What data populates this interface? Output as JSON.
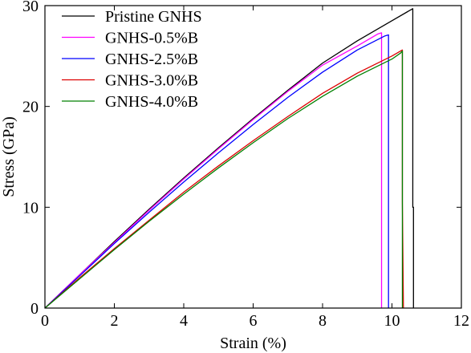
{
  "chart_data": {
    "type": "line",
    "title": "",
    "xlabel": "Strain (%)",
    "ylabel": "Stress (GPa)",
    "xlim": [
      0,
      12
    ],
    "ylim": [
      0,
      30
    ],
    "xticks": [
      0,
      2,
      4,
      6,
      8,
      10,
      12
    ],
    "yticks": [
      0,
      10,
      20,
      30
    ],
    "grid": false,
    "legend_position": "top-left",
    "series": [
      {
        "name": "Pristine GNHS",
        "color": "#000000",
        "x": [
          0,
          1,
          2,
          3,
          4,
          5,
          6,
          7,
          8,
          9,
          10,
          10.6,
          10.6,
          10.62,
          10.62
        ],
        "y": [
          0,
          3.3,
          6.6,
          9.8,
          12.9,
          15.9,
          18.8,
          21.6,
          24.3,
          26.5,
          28.5,
          29.7,
          10.0,
          10.0,
          0
        ]
      },
      {
        "name": "GNHS-0.5%B",
        "color": "#ff00ff",
        "x": [
          0,
          1,
          2,
          3,
          4,
          5,
          6,
          7,
          8,
          9,
          9.6,
          9.7,
          9.7
        ],
        "y": [
          0,
          3.3,
          6.5,
          9.7,
          12.8,
          15.8,
          18.7,
          21.5,
          24.1,
          26.0,
          27.2,
          27.3,
          0
        ]
      },
      {
        "name": "GNHS-2.5%B",
        "color": "#0000ff",
        "x": [
          0,
          1,
          2,
          3,
          4,
          5,
          6,
          7,
          8,
          9,
          9.8,
          9.9,
          9.9
        ],
        "y": [
          0,
          3.2,
          6.4,
          9.5,
          12.5,
          15.4,
          18.2,
          20.9,
          23.4,
          25.6,
          27.0,
          27.1,
          0
        ]
      },
      {
        "name": "GNHS-3.0%B",
        "color": "#dd0000",
        "x": [
          0,
          1,
          2,
          3,
          4,
          5,
          6,
          7,
          8,
          9,
          10,
          10.25,
          10.3,
          10.3,
          10.33
        ],
        "y": [
          0,
          3.0,
          5.9,
          8.7,
          11.5,
          14.1,
          16.6,
          19.0,
          21.3,
          23.3,
          25.0,
          25.5,
          25.6,
          10.5,
          0
        ]
      },
      {
        "name": "GNHS-4.0%B",
        "color": "#008000",
        "x": [
          0,
          1,
          2,
          3,
          4,
          5,
          6,
          7,
          8,
          9,
          10,
          10.25,
          10.3,
          10.3
        ],
        "y": [
          0,
          2.9,
          5.8,
          8.6,
          11.3,
          13.9,
          16.4,
          18.8,
          21.0,
          23.0,
          24.7,
          25.3,
          25.5,
          0
        ]
      }
    ]
  }
}
